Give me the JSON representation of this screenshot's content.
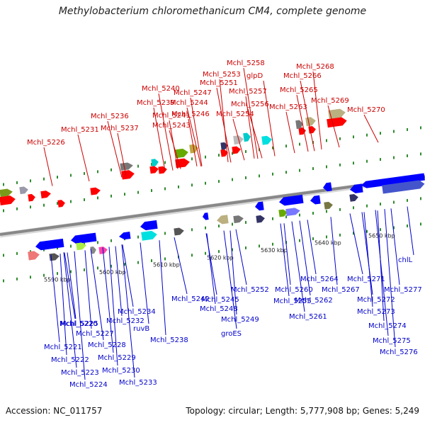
{
  "title": "Methylobacterium chloromethanicum CM4, complete genome",
  "footer": {
    "accession": "Accession: NC_011757",
    "summary": "Topology: circular; Length: 5,777,908 bp; Genes: 5,249"
  },
  "colors": {
    "top_label": "#cc0000",
    "bottom_label": "#0000cc",
    "forward_gene": "#ff0000",
    "reverse_gene": "#0000ff",
    "backbone": "#888888",
    "dots": "#2e8b2e"
  },
  "scale_ticks": [
    "5590 kbp",
    "5600 kbp",
    "5610 kbp",
    "5620 kbp",
    "5630 kbp",
    "5640 kbp",
    "5650 kbp"
  ],
  "top_labels": [
    "Mchl_5226",
    "Mchl_5231",
    "Mchl_5236",
    "Mchl_5237",
    "Mchl_5239",
    "Mchl_5240",
    "Mchl_5241",
    "Mchl_5243",
    "Mchl_5244",
    "Mchl_5246",
    "Mchl_5247",
    "Mchl_5251",
    "Mchl_5253",
    "Mchl_5254",
    "Mchl_5256",
    "Mchl_5257",
    "glpD",
    "Mchl_5258",
    "Mchl_5263",
    "Mchl_5265",
    "Mchl_5266",
    "Mchl_5268",
    "Mchl_5269",
    "Mchl_5270"
  ],
  "bottom_labels": [
    "5590 kbp",
    "Mchl_5220",
    "Mchl_5221",
    "Mchl_5222",
    "Mchl_5223",
    "Mchl_5224",
    "Mchl_5225",
    "Mchl_5227",
    "Mchl_5228",
    "Mchl_5229",
    "Mchl_5230",
    "Mchl_5232",
    "Mchl_5233",
    "Mchl_5234",
    "ruvB",
    "Mchl_5238",
    "Mchl_5242",
    "Mchl_5245",
    "Mchl_5248",
    "Mchl_5249",
    "groES",
    "Mchl_5252",
    "Mchl_5255",
    "Mchl_5260",
    "Mchl_5261",
    "Mchl_5262",
    "Mchl_5264",
    "Mchl_5267",
    "Mchl_5271",
    "Mchl_5272",
    "Mchl_5273",
    "Mchl_5274",
    "Mchl_5275",
    "Mchl_5276",
    "Mchl_5277",
    "chlL"
  ]
}
